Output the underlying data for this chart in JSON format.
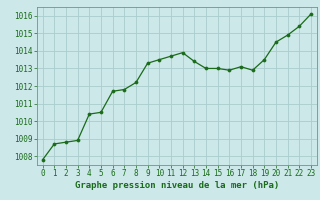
{
  "x": [
    0,
    1,
    2,
    3,
    4,
    5,
    6,
    7,
    8,
    9,
    10,
    11,
    12,
    13,
    14,
    15,
    16,
    17,
    18,
    19,
    20,
    21,
    22,
    23
  ],
  "y": [
    1007.8,
    1008.7,
    1008.8,
    1008.9,
    1010.4,
    1010.5,
    1011.7,
    1011.8,
    1012.2,
    1013.3,
    1013.5,
    1013.7,
    1013.9,
    1013.4,
    1013.0,
    1013.0,
    1012.9,
    1013.1,
    1012.9,
    1013.5,
    1014.5,
    1014.9,
    1015.4,
    1016.1
  ],
  "line_color": "#1a6b1a",
  "marker_color": "#1a6b1a",
  "bg_color": "#cce8e8",
  "grid_color": "#aacccc",
  "xlabel": "Graphe pression niveau de la mer (hPa)",
  "xlabel_color": "#1a6b1a",
  "tick_color": "#1a6b1a",
  "spine_color": "#888888",
  "ylim_min": 1007.5,
  "ylim_max": 1016.5,
  "xlim_min": -0.5,
  "xlim_max": 23.5,
  "yticks": [
    1008,
    1009,
    1010,
    1011,
    1012,
    1013,
    1014,
    1015,
    1016
  ],
  "xticks": [
    0,
    1,
    2,
    3,
    4,
    5,
    6,
    7,
    8,
    9,
    10,
    11,
    12,
    13,
    14,
    15,
    16,
    17,
    18,
    19,
    20,
    21,
    22,
    23
  ],
  "tick_fontsize": 5.5,
  "xlabel_fontsize": 6.5
}
